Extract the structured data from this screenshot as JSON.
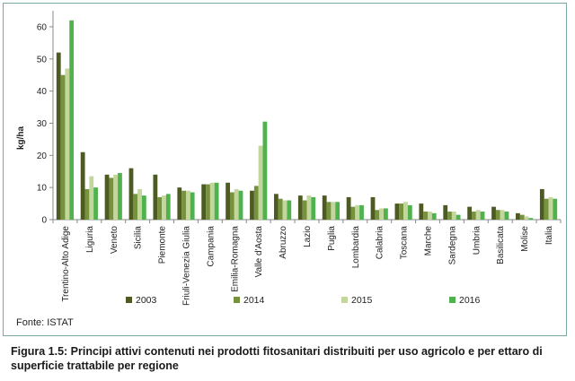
{
  "chart_data": {
    "type": "bar",
    "ylabel": "kg/ha",
    "ylim": [
      0,
      65
    ],
    "yticks": [
      0,
      10,
      20,
      30,
      40,
      50,
      60
    ],
    "grid": false,
    "legend_position": "bottom",
    "categories": [
      "Trentino-Alto Adige",
      "Liguria",
      "Veneto",
      "Sicilia",
      "Piemonte",
      "Friuli-Venezia Giulia",
      "Campania",
      "Emilia-Romagna",
      "Valle d'Aosta",
      "Abruzzo",
      "Lazio",
      "Puglia",
      "Lombardia",
      "Calabria",
      "Toscana",
      "Marche",
      "Sardegna",
      "Umbria",
      "Basilicata",
      "Molise",
      "Italia"
    ],
    "series": [
      {
        "name": "2003",
        "color": "#4d5a22",
        "values": [
          52,
          21,
          14,
          16,
          14,
          10,
          11,
          11.5,
          9,
          8,
          7.5,
          7.5,
          7,
          7,
          5,
          5,
          4.5,
          4,
          4,
          2,
          9.5
        ]
      },
      {
        "name": "2014",
        "color": "#76923c",
        "values": [
          45,
          9.5,
          13,
          8,
          7,
          9,
          11,
          8.5,
          10.5,
          6.5,
          6,
          5.5,
          4,
          3,
          5,
          2.5,
          2.5,
          2.5,
          3,
          1.5,
          6.5
        ]
      },
      {
        "name": "2015",
        "color": "#c3d69b",
        "values": [
          47,
          13.5,
          14,
          9.5,
          7.5,
          9,
          11.5,
          9.5,
          23,
          6,
          7.5,
          5.5,
          4.5,
          3.5,
          5.5,
          2.5,
          2.5,
          3,
          3,
          1,
          7
        ]
      },
      {
        "name": "2016",
        "color": "#4fb24f",
        "values": [
          62,
          10,
          14.5,
          7.5,
          8,
          8.5,
          11.5,
          9,
          30.5,
          6,
          7,
          5.5,
          4.5,
          3.5,
          4.5,
          2,
          1.5,
          2.5,
          2.5,
          0.5,
          6.5
        ]
      }
    ]
  },
  "source": "Fonte: ISTAT",
  "caption": "Figura 1.5: Principi attivi contenuti nei prodotti fitosanitari distribuiti per uso agricolo e per ettaro di superficie trattabile per regione"
}
